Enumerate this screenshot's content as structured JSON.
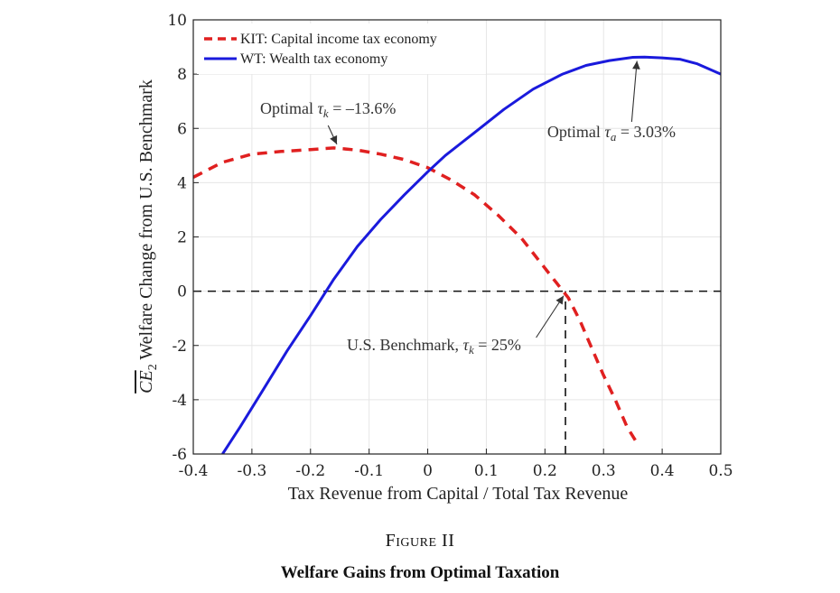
{
  "chart_data": {
    "type": "line",
    "xlabel": "Tax Revenue from Capital / Total Tax Revenue",
    "ylabel_var": "CE",
    "ylabel_sub": "2",
    "ylabel_rest": "Welfare Change from U.S. Benchmark",
    "xlim": [
      -0.4,
      0.5
    ],
    "ylim": [
      -6,
      10
    ],
    "grid": true,
    "legend_position": "top-left",
    "xticks": [
      -0.4,
      -0.3,
      -0.2,
      -0.1,
      0,
      0.1,
      0.2,
      0.3,
      0.4,
      0.5
    ],
    "xtick_labels": [
      "-0.4",
      "-0.3",
      "-0.2",
      "-0.1",
      "0",
      "0.1",
      "0.2",
      "0.3",
      "0.4",
      "0.5"
    ],
    "yticks": [
      -6,
      -4,
      -2,
      0,
      2,
      4,
      6,
      8,
      10
    ],
    "ytick_labels": [
      "-6",
      "-4",
      "-2",
      "0",
      "2",
      "4",
      "6",
      "8",
      "10"
    ],
    "series": [
      {
        "name": "KIT: Capital income tax economy",
        "color": "#e02020",
        "style": "dashed",
        "x": [
          -0.4,
          -0.35,
          -0.3,
          -0.25,
          -0.2,
          -0.16,
          -0.12,
          -0.08,
          -0.04,
          0.0,
          0.04,
          0.08,
          0.12,
          0.16,
          0.2,
          0.22,
          0.24,
          0.26,
          0.28,
          0.3,
          0.32,
          0.34,
          0.36
        ],
        "y": [
          4.2,
          4.75,
          5.05,
          5.15,
          5.22,
          5.28,
          5.2,
          5.05,
          4.85,
          4.55,
          4.1,
          3.55,
          2.8,
          1.95,
          0.85,
          0.3,
          -0.25,
          -1.1,
          -2.1,
          -3.1,
          -4.0,
          -5.0,
          -5.7
        ]
      },
      {
        "name": "WT: Wealth tax economy",
        "color": "#1a1adc",
        "style": "solid",
        "x": [
          -0.35,
          -0.32,
          -0.28,
          -0.24,
          -0.2,
          -0.16,
          -0.12,
          -0.08,
          -0.04,
          0.0,
          0.03,
          0.08,
          0.13,
          0.18,
          0.23,
          0.27,
          0.31,
          0.35,
          0.37,
          0.4,
          0.43,
          0.46,
          0.5
        ],
        "y": [
          -6.0,
          -5.0,
          -3.6,
          -2.2,
          -0.9,
          0.45,
          1.65,
          2.65,
          3.55,
          4.4,
          5.0,
          5.85,
          6.7,
          7.45,
          8.0,
          8.32,
          8.5,
          8.62,
          8.63,
          8.6,
          8.55,
          8.38,
          8.0
        ]
      }
    ],
    "reference_lines": [
      {
        "kind": "horizontal",
        "y": 0
      },
      {
        "kind": "vertical",
        "x": 0.235,
        "from_y": -6,
        "to_y": 0
      }
    ],
    "annotations": [
      {
        "id": "opt_k",
        "text_pre": "Optimal ",
        "symbol": "τ",
        "sub": "k",
        "text_post": " = –13.6%",
        "point": [
          -0.155,
          5.28
        ],
        "label_at": [
          -0.155,
          6.75
        ]
      },
      {
        "id": "opt_a",
        "text_pre": "Optimal ",
        "symbol": "τ",
        "sub": "a",
        "text_post": " = 3.03%",
        "point": [
          0.357,
          8.62
        ],
        "label_at": [
          0.355,
          5.95
        ]
      },
      {
        "id": "bench",
        "text_pre": "U.S. Benchmark, ",
        "symbol": "τ",
        "sub": "k",
        "text_post": " = 25%",
        "point": [
          0.235,
          0
        ],
        "label_at": [
          0.05,
          -2.0
        ]
      }
    ]
  },
  "figure": {
    "label": "Figure II",
    "title": "Welfare Gains from Optimal Taxation"
  }
}
